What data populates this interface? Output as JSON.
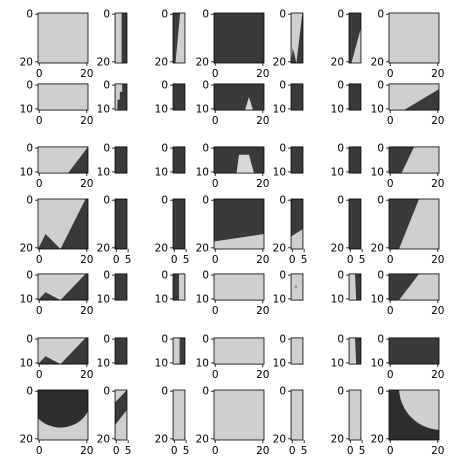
{
  "chart_data": {
    "type": "image_grid",
    "rows": 7,
    "cols": 7,
    "colormap": "gray",
    "panels": [
      {
        "w": 21,
        "h": 21,
        "tone": "light",
        "xticks": [
          0,
          20
        ],
        "yticks": [
          0,
          20
        ]
      },
      {
        "w": 5,
        "h": 21,
        "tone": "split_v_light_left",
        "xticks": [],
        "yticks": [
          0,
          20
        ]
      },
      {
        "w": 5,
        "h": 21,
        "tone": "diag_dark_left",
        "xticks": [],
        "yticks": [
          0,
          20
        ]
      },
      {
        "w": 21,
        "h": 21,
        "tone": "dark",
        "xticks": [
          0,
          20
        ],
        "yticks": [
          0,
          20
        ]
      },
      {
        "w": 5,
        "h": 21,
        "tone": "diag_dark_right",
        "xticks": [],
        "yticks": [
          0,
          20
        ]
      },
      {
        "w": 5,
        "h": 21,
        "tone": "corner_light_br",
        "xticks": [],
        "yticks": [
          0,
          20
        ]
      },
      {
        "w": 21,
        "h": 21,
        "tone": "light",
        "xticks": [
          0,
          20
        ],
        "yticks": [
          0,
          20
        ]
      },
      {
        "w": 21,
        "h": 11,
        "tone": "light",
        "xticks": [
          0,
          20
        ],
        "yticks": [
          0,
          10
        ]
      },
      {
        "w": 5,
        "h": 11,
        "tone": "blocky_light_left",
        "xticks": [],
        "yticks": [
          0,
          10
        ]
      },
      {
        "w": 5,
        "h": 11,
        "tone": "dark",
        "xticks": [],
        "yticks": [
          0,
          10
        ]
      },
      {
        "w": 21,
        "h": 11,
        "tone": "dark_peak",
        "xticks": [
          0,
          20
        ],
        "yticks": [
          0,
          10
        ]
      },
      {
        "w": 5,
        "h": 11,
        "tone": "dark",
        "xticks": [],
        "yticks": [
          0,
          10
        ]
      },
      {
        "w": 5,
        "h": 11,
        "tone": "dark",
        "xticks": [],
        "yticks": [
          0,
          10
        ]
      },
      {
        "w": 21,
        "h": 11,
        "tone": "corner_dark_br",
        "xticks": [
          0,
          20
        ],
        "yticks": [
          0,
          10
        ]
      },
      {
        "w": 21,
        "h": 11,
        "tone": "corner_light_tr",
        "xticks": [
          0,
          20
        ],
        "yticks": [
          0,
          10
        ]
      },
      {
        "w": 5,
        "h": 11,
        "tone": "dark",
        "xticks": [],
        "yticks": [
          0,
          10
        ]
      },
      {
        "w": 5,
        "h": 11,
        "tone": "dark",
        "xticks": [],
        "yticks": [
          0,
          10
        ]
      },
      {
        "w": 21,
        "h": 11,
        "tone": "dark_peak_big",
        "xticks": [
          0,
          20
        ],
        "yticks": [
          0,
          10
        ]
      },
      {
        "w": 5,
        "h": 11,
        "tone": "dark",
        "xticks": [],
        "yticks": [
          0,
          10
        ]
      },
      {
        "w": 5,
        "h": 11,
        "tone": "dark",
        "xticks": [],
        "yticks": [
          0,
          10
        ]
      },
      {
        "w": 21,
        "h": 11,
        "tone": "corner_dark_bl",
        "xticks": [
          0,
          20
        ],
        "yticks": [
          0,
          10
        ]
      },
      {
        "w": 21,
        "h": 21,
        "tone": "diag_dark_right",
        "xticks": [
          0,
          20
        ],
        "yticks": [
          0,
          20
        ]
      },
      {
        "w": 5,
        "h": 21,
        "tone": "dark",
        "xticks": [
          0,
          5
        ],
        "yticks": [
          0,
          20
        ]
      },
      {
        "w": 5,
        "h": 21,
        "tone": "dark",
        "xticks": [
          0,
          5
        ],
        "yticks": [
          0,
          20
        ]
      },
      {
        "w": 21,
        "h": 21,
        "tone": "dark_bottom_light",
        "xticks": [
          0,
          20
        ],
        "yticks": [
          0,
          20
        ]
      },
      {
        "w": 5,
        "h": 21,
        "tone": "dark_bottom_corner",
        "xticks": [
          0,
          5
        ],
        "yticks": [
          0,
          20
        ]
      },
      {
        "w": 5,
        "h": 21,
        "tone": "dark",
        "xticks": [
          0,
          5
        ],
        "yticks": [
          0,
          20
        ]
      },
      {
        "w": 21,
        "h": 21,
        "tone": "diag_dark_left",
        "xticks": [
          0,
          20
        ],
        "yticks": [
          0,
          20
        ]
      },
      {
        "w": 21,
        "h": 11,
        "tone": "diag_dark_right",
        "xticks": [
          0,
          20
        ],
        "yticks": [
          0,
          10
        ]
      },
      {
        "w": 5,
        "h": 11,
        "tone": "dark",
        "xticks": [],
        "yticks": [
          0,
          10
        ]
      },
      {
        "w": 5,
        "h": 11,
        "tone": "split_v_light_right",
        "xticks": [],
        "yticks": [
          0,
          10
        ]
      },
      {
        "w": 21,
        "h": 11,
        "tone": "light",
        "xticks": [
          0,
          20
        ],
        "yticks": [
          0,
          10
        ]
      },
      {
        "w": 5,
        "h": 11,
        "tone": "light_spot",
        "xticks": [],
        "yticks": [
          0,
          10
        ]
      },
      {
        "w": 5,
        "h": 11,
        "tone": "split_v_dark_right",
        "xticks": [],
        "yticks": [
          0,
          10
        ]
      },
      {
        "w": 21,
        "h": 11,
        "tone": "diag_dark_left",
        "xticks": [
          0,
          20
        ],
        "yticks": [
          0,
          10
        ]
      },
      {
        "w": 21,
        "h": 11,
        "tone": "diag_dark_right",
        "xticks": [
          0,
          20
        ],
        "yticks": [
          0,
          10
        ]
      },
      {
        "w": 5,
        "h": 11,
        "tone": "dark",
        "xticks": [],
        "yticks": [
          0,
          10
        ]
      },
      {
        "w": 5,
        "h": 11,
        "tone": "split_v_light_left",
        "xticks": [],
        "yticks": [
          0,
          10
        ]
      },
      {
        "w": 21,
        "h": 11,
        "tone": "light",
        "xticks": [
          0,
          20
        ],
        "yticks": [
          0,
          10
        ]
      },
      {
        "w": 5,
        "h": 11,
        "tone": "light",
        "xticks": [],
        "yticks": [
          0,
          10
        ]
      },
      {
        "w": 5,
        "h": 11,
        "tone": "split_v_dark_right",
        "xticks": [],
        "yticks": [
          0,
          10
        ]
      },
      {
        "w": 21,
        "h": 11,
        "tone": "dark",
        "xticks": [
          0,
          20
        ],
        "yticks": [
          0,
          10
        ]
      },
      {
        "w": 21,
        "h": 21,
        "tone": "arc_dark_bottom",
        "xticks": [
          0,
          20
        ],
        "yticks": [
          0,
          20
        ]
      },
      {
        "w": 5,
        "h": 21,
        "tone": "diag_dark_top",
        "xticks": [
          0,
          5
        ],
        "yticks": [
          0,
          20
        ]
      },
      {
        "w": 5,
        "h": 21,
        "tone": "light",
        "xticks": [
          0,
          5
        ],
        "yticks": [
          0,
          20
        ]
      },
      {
        "w": 21,
        "h": 21,
        "tone": "light",
        "xticks": [
          0,
          20
        ],
        "yticks": [
          0,
          20
        ]
      },
      {
        "w": 5,
        "h": 21,
        "tone": "light",
        "xticks": [
          0,
          5
        ],
        "yticks": [
          0,
          20
        ]
      },
      {
        "w": 5,
        "h": 21,
        "tone": "light",
        "xticks": [
          0,
          5
        ],
        "yticks": [
          0,
          20
        ]
      },
      {
        "w": 21,
        "h": 21,
        "tone": "arc_dark_top",
        "xticks": [
          0,
          20
        ],
        "yticks": [
          0,
          20
        ]
      }
    ]
  }
}
